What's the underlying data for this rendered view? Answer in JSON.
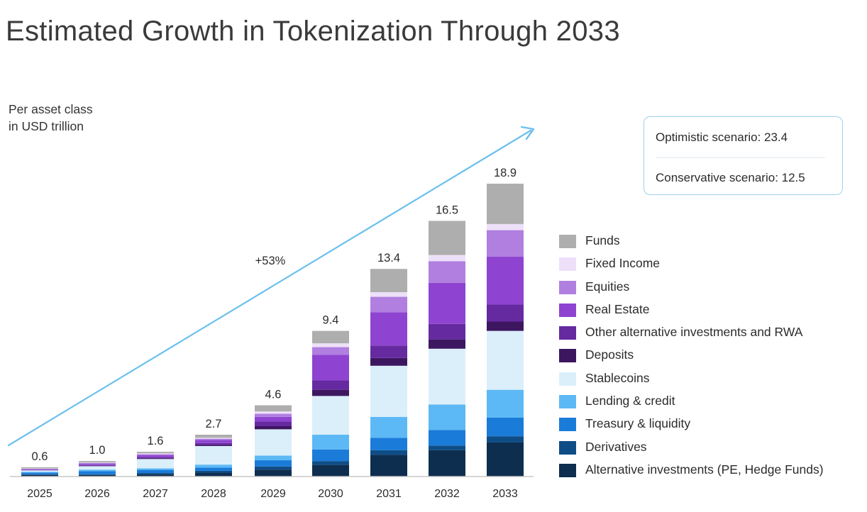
{
  "page": {
    "title": "Estimated Growth in Tokenization Through 2033",
    "unit_line1": "Per asset class",
    "unit_line2": "in USD trillion"
  },
  "scenarios": {
    "optimistic": "Optimistic scenario: 23.4",
    "conservative": "Conservative scenario: 12.5"
  },
  "chart_data": {
    "type": "bar",
    "stacked": true,
    "title": "Estimated Growth in Tokenization Through 2033",
    "ylabel": "Per asset class in USD trillion",
    "categories": [
      "2025",
      "2026",
      "2027",
      "2028",
      "2029",
      "2030",
      "2031",
      "2032",
      "2033"
    ],
    "totals": [
      0.6,
      1.0,
      1.6,
      2.7,
      4.6,
      9.4,
      13.4,
      16.5,
      18.9
    ],
    "total_labels": [
      "0.6",
      "1.0",
      "1.6",
      "2.7",
      "4.6",
      "9.4",
      "13.4",
      "16.5",
      "18.9"
    ],
    "growth_label": "+53%",
    "legend_position": "right",
    "series": [
      {
        "name": "Alternative investments (PE, Hedge Funds)",
        "color": "#0d2e4f",
        "values": [
          0.1,
          0.1,
          0.15,
          0.25,
          0.45,
          0.75,
          1.4,
          1.7,
          2.2
        ]
      },
      {
        "name": "Derivatives",
        "color": "#0f4d86",
        "values": [
          0.05,
          0.05,
          0.08,
          0.12,
          0.2,
          0.25,
          0.3,
          0.3,
          0.4
        ]
      },
      {
        "name": "Treasury & liquidity",
        "color": "#1a7bd9",
        "values": [
          0.1,
          0.2,
          0.2,
          0.2,
          0.4,
          0.75,
          0.8,
          1.0,
          1.2
        ]
      },
      {
        "name": "Lending & credit",
        "color": "#5db9f5",
        "values": [
          0.05,
          0.1,
          0.1,
          0.2,
          0.3,
          0.95,
          1.35,
          1.65,
          1.8
        ]
      },
      {
        "name": "Stablecoins",
        "color": "#dbeffb",
        "values": [
          0.1,
          0.22,
          0.6,
          1.2,
          1.7,
          2.5,
          3.3,
          3.6,
          3.8
        ]
      },
      {
        "name": "Deposits",
        "color": "#3d1660",
        "values": [
          0.0,
          0.02,
          0.05,
          0.07,
          0.2,
          0.4,
          0.5,
          0.6,
          0.6
        ]
      },
      {
        "name": "Other alternative investments and RWA",
        "color": "#652aa0",
        "values": [
          0.03,
          0.05,
          0.07,
          0.12,
          0.3,
          0.6,
          0.8,
          1.0,
          1.1
        ]
      },
      {
        "name": "Real Estate",
        "color": "#8e44d0",
        "values": [
          0.04,
          0.08,
          0.13,
          0.2,
          0.3,
          1.65,
          2.15,
          2.65,
          3.1
        ]
      },
      {
        "name": "Equities",
        "color": "#b07fe0",
        "values": [
          0.03,
          0.05,
          0.07,
          0.08,
          0.2,
          0.5,
          1.0,
          1.4,
          1.7
        ]
      },
      {
        "name": "Fixed Income",
        "color": "#ede0f8",
        "values": [
          0.02,
          0.03,
          0.05,
          0.06,
          0.15,
          0.25,
          0.3,
          0.4,
          0.4
        ]
      },
      {
        "name": "Funds",
        "color": "#aeaeae",
        "values": [
          0.08,
          0.1,
          0.1,
          0.2,
          0.4,
          0.8,
          1.5,
          2.2,
          2.6
        ]
      }
    ],
    "legend_order": [
      "Funds",
      "Fixed Income",
      "Equities",
      "Real Estate",
      "Other alternative investments and RWA",
      "Deposits",
      "Stablecoins",
      "Lending & credit",
      "Treasury & liquidity",
      "Derivatives",
      "Alternative investments (PE, Hedge Funds)"
    ],
    "colors": {
      "arrow": "#6cc0ee",
      "axis": "#c9c9c9"
    }
  }
}
